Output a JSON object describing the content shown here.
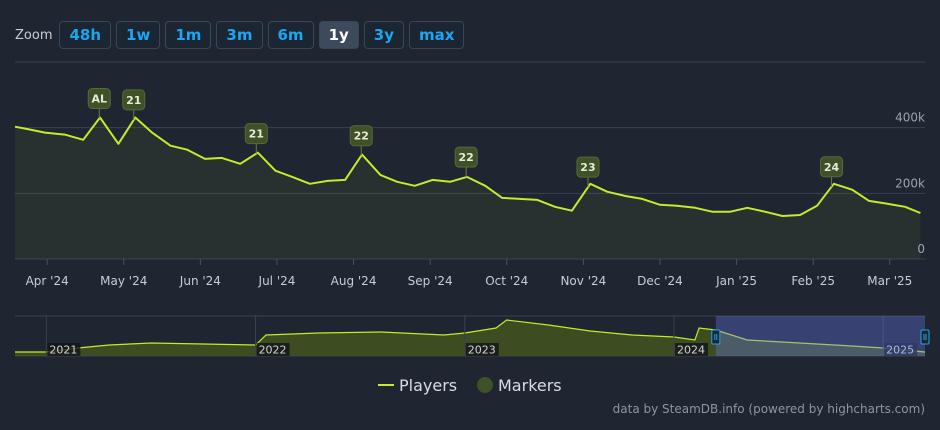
{
  "zoom": {
    "label": "Zoom",
    "buttons": [
      "48h",
      "1w",
      "1m",
      "3m",
      "6m",
      "1y",
      "3y",
      "max"
    ],
    "selected_index": 5
  },
  "chart_data": {
    "type": "line",
    "series": [
      {
        "name": "Players",
        "color": "#c3ec2a",
        "x": [
          -0.42,
          -0.22,
          -0.03,
          0.23,
          0.47,
          0.69,
          0.93,
          1.15,
          1.37,
          1.61,
          1.83,
          2.06,
          2.28,
          2.52,
          2.75,
          2.98,
          3.2,
          3.43,
          3.66,
          3.89,
          4.11,
          4.35,
          4.57,
          4.8,
          5.03,
          5.26,
          5.48,
          5.72,
          5.94,
          6.17,
          6.4,
          6.63,
          6.85,
          7.09,
          7.31,
          7.55,
          7.77,
          8.0,
          8.22,
          8.46,
          8.68,
          8.92,
          9.14,
          9.37,
          9.6,
          9.83,
          10.05,
          10.27,
          10.51,
          10.73,
          10.97,
          11.2,
          11.4
        ],
        "values": [
          403000,
          394000,
          385000,
          379000,
          363000,
          431000,
          351000,
          431000,
          385000,
          345000,
          333000,
          305000,
          308000,
          290000,
          324000,
          269000,
          250000,
          229000,
          238000,
          241000,
          318000,
          256000,
          235000,
          223000,
          241000,
          235000,
          250000,
          223000,
          186000,
          183000,
          180000,
          159000,
          147000,
          229000,
          205000,
          192000,
          183000,
          165000,
          162000,
          156000,
          144000,
          144000,
          156000,
          144000,
          131000,
          134000,
          162000,
          229000,
          211000,
          177000,
          168000,
          159000,
          140000
        ]
      }
    ],
    "markers": {
      "name": "Markers",
      "color": "#3e5127",
      "items": [
        {
          "x": 0.68,
          "label": "AL"
        },
        {
          "x": 1.13,
          "label": "21"
        },
        {
          "x": 2.73,
          "label": "21"
        },
        {
          "x": 4.1,
          "label": "22"
        },
        {
          "x": 5.47,
          "label": "22"
        },
        {
          "x": 7.06,
          "label": "23"
        },
        {
          "x": 10.24,
          "label": "24"
        }
      ]
    },
    "xlim": [
      -0.42,
      11.46
    ],
    "xticks": [
      {
        "value": 0,
        "label": "Apr '24"
      },
      {
        "value": 1,
        "label": "May '24"
      },
      {
        "value": 2,
        "label": "Jun '24"
      },
      {
        "value": 3,
        "label": "Jul '24"
      },
      {
        "value": 4,
        "label": "Aug '24"
      },
      {
        "value": 5,
        "label": "Sep '24"
      },
      {
        "value": 6,
        "label": "Oct '24"
      },
      {
        "value": 7,
        "label": "Nov '24"
      },
      {
        "value": 8,
        "label": "Dec '24"
      },
      {
        "value": 9,
        "label": "Jan '25"
      },
      {
        "value": 10,
        "label": "Feb '25"
      },
      {
        "value": 11,
        "label": "Mar '25"
      }
    ],
    "ylim": [
      0,
      600000
    ],
    "yticks": [
      0,
      {
        "value": 200000,
        "label": "200k"
      },
      {
        "value": 400000,
        "label": "400k"
      }
    ],
    "grid": true,
    "navigator": {
      "xlim": [
        2020.85,
        2025.2
      ],
      "ylim": [
        0,
        1000000
      ],
      "xticks": [
        2021,
        2022,
        2023,
        2024,
        2025
      ],
      "selection": [
        2024.2,
        2025.2
      ],
      "x": [
        2020.85,
        2021.0,
        2021.15,
        2021.3,
        2021.5,
        2021.75,
        2022.0,
        2022.05,
        2022.3,
        2022.6,
        2022.9,
        2023.0,
        2023.15,
        2023.2,
        2023.4,
        2023.6,
        2023.8,
        2024.0,
        2024.1,
        2024.12,
        2024.2,
        2024.35,
        2024.6,
        2024.85,
        2025.0,
        2025.2
      ],
      "values": [
        100000,
        100000,
        200000,
        275000,
        325000,
        300000,
        275000,
        525000,
        575000,
        600000,
        525000,
        575000,
        700000,
        900000,
        775000,
        625000,
        525000,
        475000,
        400000,
        700000,
        650000,
        400000,
        325000,
        250000,
        200000,
        100000
      ]
    }
  },
  "credit": "data by SteamDB.info (powered by highcharts.com)"
}
